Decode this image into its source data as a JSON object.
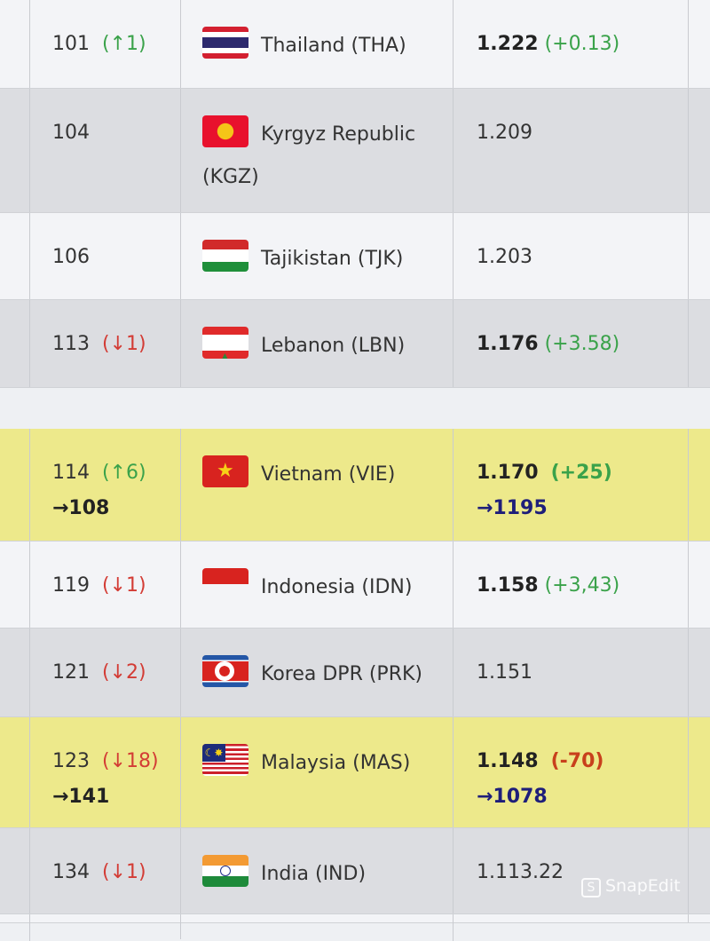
{
  "rows": [
    {
      "rank": "101",
      "change": "(↑1)",
      "dir": "up",
      "team": "Thailand (THA)",
      "flag": "thailand-flag",
      "points": "1.222",
      "delta": "(+0.13)",
      "delta_type": "up",
      "bold": true
    },
    {
      "rank": "104",
      "team": "Kyrgyz Republic (KGZ)",
      "flag": "kyrgyzstan-flag",
      "points": "1.209"
    },
    {
      "rank": "106",
      "team": "Tajikistan (TJK)",
      "flag": "tajikistan-flag",
      "points": "1.203"
    },
    {
      "rank": "113",
      "change": "(↓1)",
      "dir": "down",
      "team": "Lebanon (LBN)",
      "flag": "lebanon-flag",
      "points": "1.176",
      "delta": "(+3.58)",
      "delta_type": "up",
      "bold": true
    },
    {
      "rank": "114",
      "change": "(↑6)",
      "dir": "up",
      "new_rank": "→108",
      "team": "Vietnam (VIE)",
      "flag": "vietnam-flag",
      "points": "1.170",
      "delta": "(+25)",
      "delta_type": "up",
      "new_points": "→1195",
      "bold": true,
      "highlight": true
    },
    {
      "rank": "119",
      "change": "(↓1)",
      "dir": "down",
      "team": "Indonesia (IDN)",
      "flag": "indonesia-flag",
      "points": "1.158",
      "delta": "(+3,43)",
      "delta_type": "up",
      "bold": true
    },
    {
      "rank": "121",
      "change": "(↓2)",
      "dir": "down",
      "team": "Korea DPR (PRK)",
      "flag": "north-korea-flag",
      "points": "1.151"
    },
    {
      "rank": "123",
      "change": "(↓18)",
      "dir": "down",
      "new_rank": "→141",
      "team": "Malaysia (MAS)",
      "flag": "malaysia-flag",
      "points": "1.148",
      "delta": "(-70)",
      "delta_type": "neg",
      "new_points": "→1078",
      "bold": true,
      "highlight": true
    },
    {
      "rank": "134",
      "change": "(↓1)",
      "dir": "down",
      "team": "India (IND)",
      "flag": "india-flag",
      "points": "1.113.22"
    }
  ],
  "colors": {
    "highlight": "#ede98b",
    "up": "#3aa24a",
    "down": "#d33c35",
    "new_points": "#1e1e7a"
  },
  "watermark": "SnapEdit"
}
